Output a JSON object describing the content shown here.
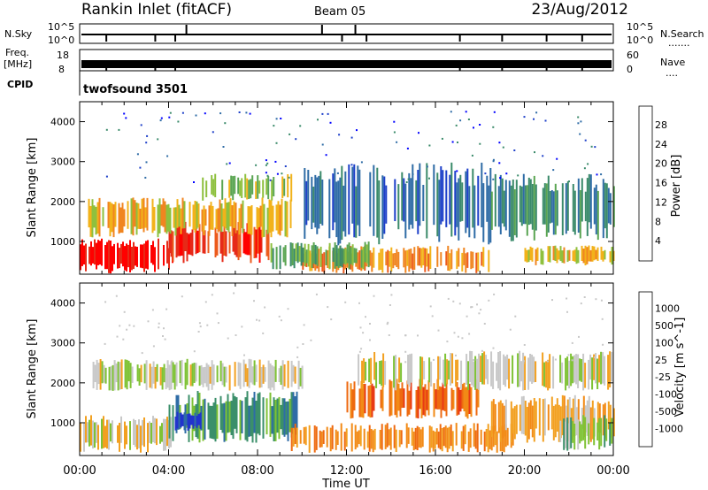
{
  "header": {
    "title": "Rankin Inlet (fitACF)",
    "beam": "Beam 05",
    "date": "23/Aug/2012"
  },
  "top_panels": {
    "nsky_label": "N.Sky",
    "nsearch_label": "N.Search",
    "nsearch_legend": ".......",
    "left_ticks": [
      "10^5",
      "10^0"
    ],
    "right_ticks": [
      "10^5",
      "10^0"
    ],
    "freq_label_line1": "Freq.",
    "freq_label_line2": "[MHz]",
    "freq_ticks": [
      "18",
      "8"
    ],
    "nave_label": "Nave",
    "nave_legend": "....",
    "nave_ticks": [
      "60",
      "0"
    ],
    "cpid_label": "CPID",
    "cpid_value": "twofsound 3501"
  },
  "x_axis": {
    "label": "Time UT",
    "ticks": [
      "00:00",
      "04:00",
      "08:00",
      "12:00",
      "16:00",
      "20:00",
      "00:00"
    ],
    "tick_hours": [
      0,
      4,
      8,
      12,
      16,
      20,
      24
    ]
  },
  "chart_data": [
    {
      "type": "heatmap",
      "title": "",
      "ylabel": "Slant Range [km]",
      "ylim": [
        180,
        4500
      ],
      "yticks": [
        1000,
        2000,
        3000,
        4000
      ],
      "xlim_hours": [
        0,
        24
      ],
      "colorbar": {
        "label": "Power [dB]",
        "ticks": [
          "4",
          "8",
          "12",
          "16",
          "20",
          "24",
          "28"
        ],
        "colors": [
          "#0000ff",
          "#1d3fc9",
          "#2f6ca6",
          "#3a8a6a",
          "#5aa552",
          "#8ec03e",
          "#f2b21a",
          "#f08520",
          "#ec5a1c",
          "#e62a18",
          "#ff0000"
        ]
      },
      "regions": [
        {
          "t0": 0.0,
          "t1": 4.2,
          "r0": 200,
          "r1": 1100,
          "level": 10
        },
        {
          "t0": 4.0,
          "t1": 8.5,
          "r0": 450,
          "r1": 1500,
          "level": 9
        },
        {
          "t0": 0.3,
          "t1": 9.5,
          "r0": 1100,
          "r1": 2100,
          "level": 6
        },
        {
          "t0": 5.5,
          "t1": 9.5,
          "r0": 2000,
          "r1": 2700,
          "level": 5
        },
        {
          "t0": 10.0,
          "t1": 18.5,
          "r0": 200,
          "r1": 900,
          "level": 7
        },
        {
          "t0": 8.5,
          "t1": 13.0,
          "r0": 300,
          "r1": 1000,
          "level": 4
        },
        {
          "t0": 10.0,
          "t1": 18.5,
          "r0": 900,
          "r1": 3000,
          "level": 2
        },
        {
          "t0": 18.5,
          "t1": 24.0,
          "r0": 1000,
          "r1": 2700,
          "level": 3
        },
        {
          "t0": 20.0,
          "t1": 24.0,
          "r0": 400,
          "r1": 900,
          "level": 6
        }
      ]
    },
    {
      "type": "heatmap",
      "title": "",
      "ylabel": "Slant Range [km]",
      "ylim": [
        180,
        4500
      ],
      "yticks": [
        1000,
        2000,
        3000,
        4000
      ],
      "xlim_hours": [
        0,
        24
      ],
      "colorbar": {
        "label": "Velocity [m s^-1]",
        "ticks": [
          "1000",
          "500",
          "100",
          "25",
          "-25",
          "-100",
          "-500",
          "-1000"
        ],
        "colors": [
          "#2233cc",
          "#2f6ca6",
          "#3b8f6a",
          "#7ec234",
          "#c8c8c8",
          "#f2a020",
          "#f28a16",
          "#ee6a10",
          "#e83a14",
          "#ff1010"
        ]
      },
      "regions": [
        {
          "t0": 0.0,
          "t1": 4.2,
          "r0": 250,
          "r1": 1200,
          "level": 4
        },
        {
          "t0": 4.0,
          "t1": 9.8,
          "r0": 500,
          "r1": 1800,
          "level": 2
        },
        {
          "t0": 4.2,
          "t1": 5.5,
          "r0": 800,
          "r1": 1300,
          "level": 0
        },
        {
          "t0": 0.5,
          "t1": 10.0,
          "r0": 1800,
          "r1": 2600,
          "level": 4
        },
        {
          "t0": 9.5,
          "t1": 19.5,
          "r0": 250,
          "r1": 1000,
          "level": 6
        },
        {
          "t0": 12.0,
          "t1": 18.0,
          "r0": 1100,
          "r1": 2100,
          "level": 7
        },
        {
          "t0": 12.5,
          "t1": 24.0,
          "r0": 1800,
          "r1": 2800,
          "level": 4
        },
        {
          "t0": 18.5,
          "t1": 24.0,
          "r0": 500,
          "r1": 1700,
          "level": 5
        },
        {
          "t0": 21.5,
          "t1": 24.0,
          "r0": 300,
          "r1": 1200,
          "level": 3
        }
      ]
    }
  ]
}
